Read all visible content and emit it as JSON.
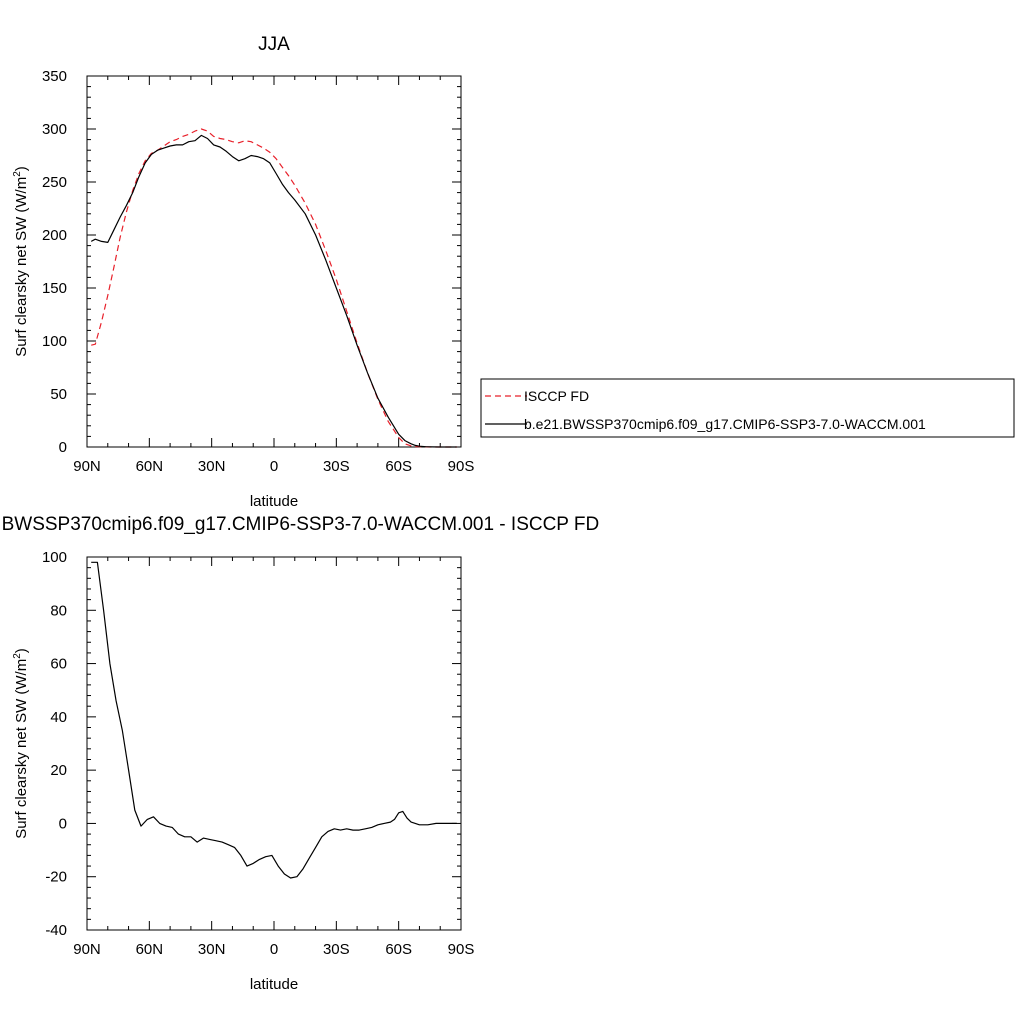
{
  "chart_data": [
    {
      "type": "line",
      "title": "JJA",
      "xlabel": "latitude",
      "ylabel": "Surf clearsky net SW (W/m",
      "ylabel_sup": "2",
      "ylabel_end": ")",
      "xlim": [
        90,
        -90
      ],
      "ylim": [
        0,
        350
      ],
      "x_ticks": [
        90,
        60,
        30,
        0,
        -30,
        -60,
        -90
      ],
      "x_tick_labels": [
        "90N",
        "60N",
        "30N",
        "0",
        "30S",
        "60S",
        "90S"
      ],
      "y_ticks": [
        0,
        50,
        100,
        150,
        200,
        250,
        300,
        350
      ],
      "y_tick_labels": [
        "0",
        "50",
        "100",
        "150",
        "200",
        "250",
        "300",
        "350"
      ],
      "legend_position": "right",
      "series": [
        {
          "name": "ISCCP FD",
          "color": "#e8202a",
          "dash": "dashed",
          "x": [
            88,
            86,
            83,
            80,
            77,
            74,
            71,
            68,
            65,
            62,
            59,
            56,
            53,
            50,
            47,
            44,
            41,
            38,
            35,
            32,
            29,
            26,
            23,
            20,
            17,
            14,
            11,
            8,
            5,
            2,
            -1,
            -4,
            -7,
            -10,
            -15,
            -20,
            -25,
            -30,
            -35,
            -40,
            -45,
            -50,
            -55,
            -60,
            -63,
            -66,
            -68,
            -70,
            -73,
            -76,
            -80,
            -85,
            -88
          ],
          "y": [
            96,
            97,
            118,
            143,
            170,
            198,
            222,
            242,
            258,
            270,
            277,
            280,
            284,
            288,
            290,
            293,
            295,
            298,
            300,
            298,
            293,
            291,
            290,
            288,
            287,
            289,
            288,
            285,
            282,
            278,
            272,
            264,
            256,
            247,
            230,
            210,
            185,
            158,
            128,
            98,
            70,
            45,
            24,
            9,
            3,
            1,
            0.5,
            0.3,
            0.1,
            0,
            0,
            0,
            0
          ]
        },
        {
          "name": "b.e21.BWSSP370cmip6.f09_g17.CMIP6-SSP3-7.0-WACCM.001",
          "color": "#000000",
          "dash": "solid",
          "x": [
            88,
            86,
            83,
            80,
            77,
            74,
            71,
            68,
            65,
            62,
            59,
            56,
            53,
            50,
            47,
            44,
            41,
            38,
            35,
            32,
            29,
            26,
            23,
            20,
            17,
            14,
            11,
            8,
            5,
            2,
            -1,
            -4,
            -7,
            -10,
            -15,
            -20,
            -25,
            -30,
            -35,
            -40,
            -45,
            -50,
            -55,
            -60,
            -63,
            -66,
            -68,
            -70,
            -73,
            -76,
            -80,
            -85,
            -88
          ],
          "y": [
            194,
            196,
            194,
            193,
            205,
            217,
            228,
            240,
            255,
            268,
            276,
            280,
            282,
            284,
            285,
            285,
            288,
            289,
            294,
            291,
            285,
            283,
            279,
            274,
            270,
            272,
            275,
            274,
            272,
            268,
            258,
            248,
            240,
            233,
            220,
            200,
            176,
            150,
            124,
            96,
            70,
            46,
            28,
            12,
            6,
            3,
            1.5,
            0.8,
            0.3,
            0.1,
            0,
            0,
            0
          ]
        }
      ]
    },
    {
      "type": "line",
      "title": "b.e21.BWSSP370cmip6.f09_g17.CMIP6-SSP3-7.0-WACCM.001 - ISCCP FD",
      "xlabel": "latitude",
      "ylabel": "Surf clearsky net SW (W/m",
      "ylabel_sup": "2",
      "ylabel_end": ")",
      "xlim": [
        90,
        -90
      ],
      "ylim": [
        -40,
        100
      ],
      "x_ticks": [
        90,
        60,
        30,
        0,
        -30,
        -60,
        -90
      ],
      "x_tick_labels": [
        "90N",
        "60N",
        "30N",
        "0",
        "30S",
        "60S",
        "90S"
      ],
      "y_ticks": [
        -40,
        -20,
        0,
        20,
        40,
        60,
        80,
        100
      ],
      "y_tick_labels": [
        "-40",
        "-20",
        "0",
        "20",
        "40",
        "60",
        "80",
        "100"
      ],
      "series": [
        {
          "color": "#000000",
          "dash": "solid",
          "x": [
            88,
            85,
            82,
            79,
            76,
            73,
            70,
            67,
            64,
            61,
            58,
            55,
            52,
            49,
            46,
            43,
            40,
            37,
            34,
            31,
            28,
            25,
            22,
            19,
            16,
            13,
            10,
            7,
            4,
            1,
            -2,
            -5,
            -8,
            -11,
            -14,
            -17,
            -20,
            -23,
            -26,
            -29,
            -32,
            -35,
            -38,
            -41,
            -44,
            -47,
            -50,
            -53,
            -56,
            -58,
            -60,
            -62,
            -64,
            -66,
            -68,
            -70,
            -74,
            -78,
            -82,
            -86,
            -88
          ],
          "y": [
            98,
            98,
            80,
            60,
            46,
            35,
            20,
            5,
            -1,
            1.5,
            2.5,
            0,
            -1,
            -1.5,
            -4,
            -5,
            -5,
            -7,
            -5.5,
            -6,
            -6.5,
            -7,
            -8,
            -9,
            -12,
            -16,
            -15,
            -13.5,
            -12.5,
            -12,
            -16,
            -19,
            -20.5,
            -20,
            -17,
            -13,
            -9,
            -5,
            -3,
            -2,
            -2.5,
            -2,
            -2.5,
            -2.5,
            -2,
            -1.5,
            -0.5,
            0,
            0.5,
            1.5,
            4,
            4.5,
            2,
            0.5,
            0,
            -0.5,
            -0.5,
            0,
            0,
            0,
            0
          ]
        }
      ]
    }
  ]
}
